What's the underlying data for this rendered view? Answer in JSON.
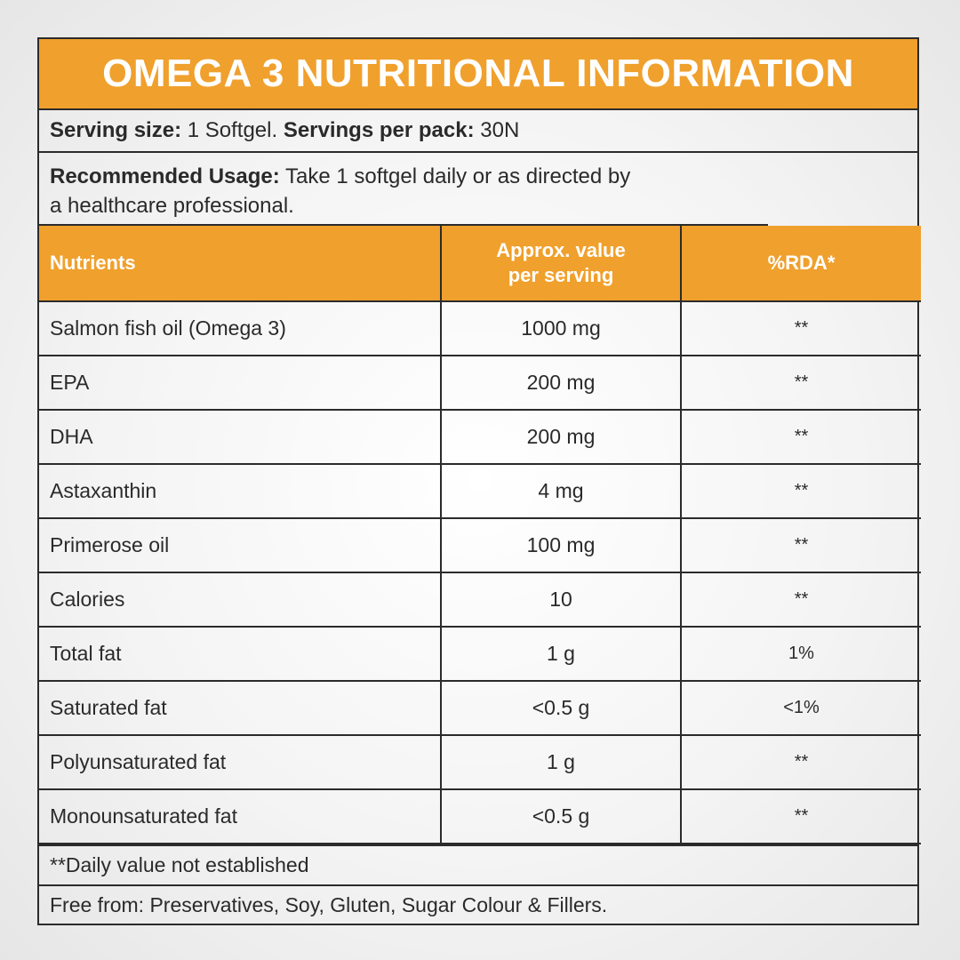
{
  "title": "OMEGA 3 NUTRITIONAL INFORMATION",
  "serving": {
    "size_label": "Serving size:",
    "size_value": "1 Softgel.",
    "per_pack_label": "Servings per pack:",
    "per_pack_value": "30N"
  },
  "usage": {
    "label": "Recommended Usage:",
    "text_line1": "Take 1 softgel daily or as directed by",
    "text_line2": "a healthcare professional."
  },
  "table": {
    "headers": {
      "nutrients": "Nutrients",
      "value_line1": "Approx. value",
      "value_line2": "per serving",
      "rda": "%RDA*"
    },
    "rows": [
      {
        "nutrient": "Salmon fish oil (Omega 3)",
        "value": "1000 mg",
        "rda": "**"
      },
      {
        "nutrient": "EPA",
        "value": "200 mg",
        "rda": "**"
      },
      {
        "nutrient": "DHA",
        "value": "200 mg",
        "rda": "**"
      },
      {
        "nutrient": "Astaxanthin",
        "value": "4 mg",
        "rda": "**"
      },
      {
        "nutrient": "Primerose oil",
        "value": "100 mg",
        "rda": "**"
      },
      {
        "nutrient": "Calories",
        "value": "10",
        "rda": "**"
      },
      {
        "nutrient": "Total fat",
        "value": "1 g",
        "rda": "1%"
      },
      {
        "nutrient": "Saturated fat",
        "value": "<0.5 g",
        "rda": "<1%"
      },
      {
        "nutrient": "Polyunsaturated fat",
        "value": "1 g",
        "rda": "**"
      },
      {
        "nutrient": "Monounsaturated fat",
        "value": "<0.5 g",
        "rda": "**"
      }
    ]
  },
  "footnote": "**Daily value not established",
  "free_from": "Free from: Preservatives, Soy, Gluten, Sugar Colour & Fillers.",
  "colors": {
    "accent": "#f0a02c",
    "border": "#2b2b2b",
    "header_text": "#ffffff"
  }
}
